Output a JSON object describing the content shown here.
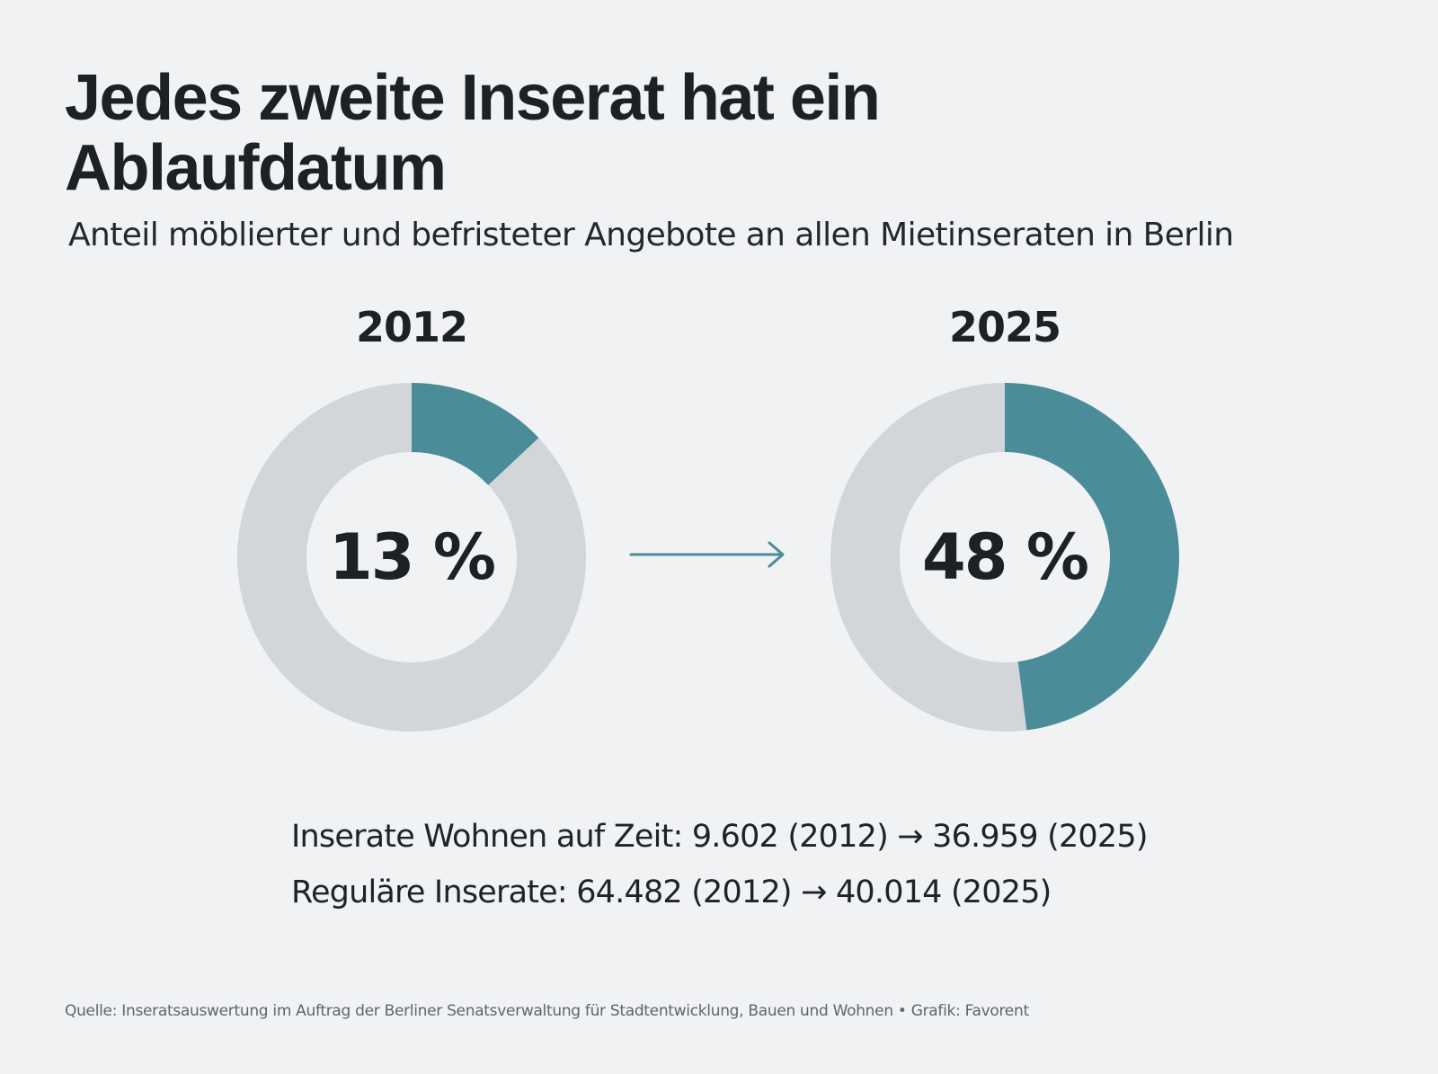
{
  "header": {
    "title": "Jedes zweite Inserat hat ein Ablaufdatum",
    "subtitle": "Anteil möblierter und befristeter Angebote an allen Mietinseraten in Berlin"
  },
  "stats": {
    "line1": "Inserate Wohnen auf Zeit: 9.602 (2012) → 36.959 (2025)",
    "line2": "Reguläre Inserate: 64.482 (2012) → 40.014 (2025)"
  },
  "footer": {
    "source": "Quelle: Inseratsauswertung im Auftrag der Berliner Senatsverwaltung für Stadtentwicklung, Bauen und Wohnen  •  Grafik: Favorent"
  },
  "colors": {
    "accent": "#4a8c98",
    "remainder": "#d2d6db",
    "background": "#f1f2f4"
  },
  "chart_data": [
    {
      "type": "pie",
      "title": "2012",
      "center_label": "13 %",
      "categories": [
        "Wohnen auf Zeit",
        "Reguläre Inserate"
      ],
      "values": [
        13,
        87
      ],
      "unit": "%"
    },
    {
      "type": "pie",
      "title": "2025",
      "center_label": "48 %",
      "categories": [
        "Wohnen auf Zeit",
        "Reguläre Inserate"
      ],
      "values": [
        48,
        52
      ],
      "unit": "%"
    }
  ]
}
